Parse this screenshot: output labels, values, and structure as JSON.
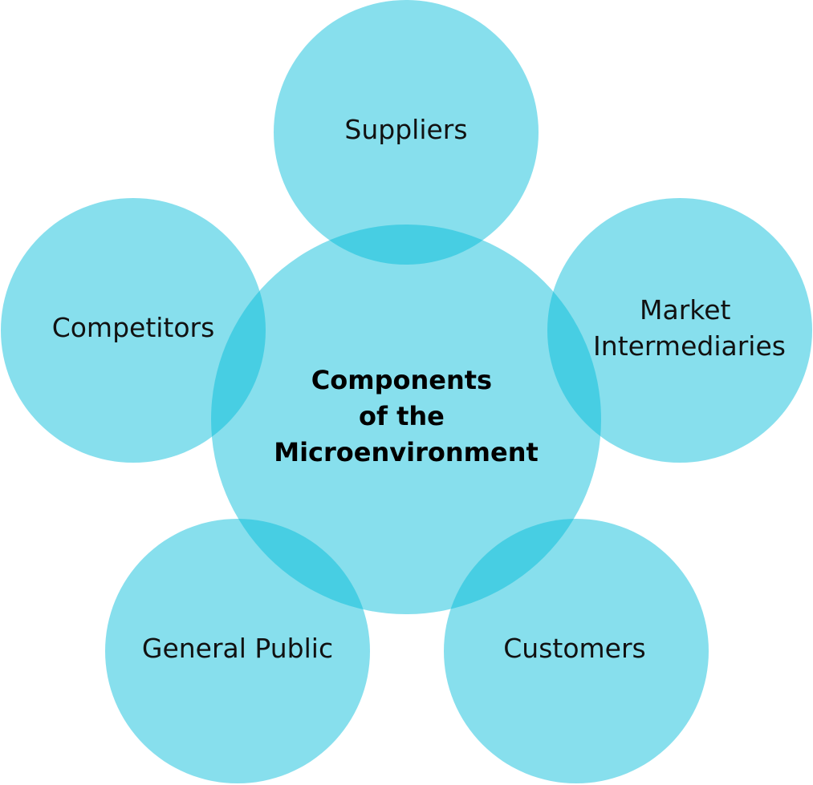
{
  "diagram": {
    "center": {
      "lines": [
        "Components",
        "of the",
        "Microenvironment"
      ]
    },
    "nodes": {
      "suppliers": {
        "lines": [
          "Suppliers"
        ]
      },
      "competitors": {
        "lines": [
          "Competitors"
        ]
      },
      "market_intermediaries": {
        "lines": [
          "Market",
          "Intermediaries"
        ]
      },
      "general_public": {
        "lines": [
          "General Public"
        ]
      },
      "customers": {
        "lines": [
          "Customers"
        ]
      }
    },
    "colors": {
      "circle_fill": "#00bcd8",
      "text": "#111111"
    }
  }
}
